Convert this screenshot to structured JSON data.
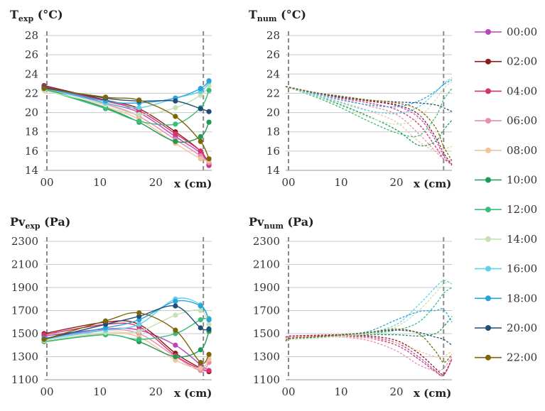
{
  "colors": [
    "#bb44bb",
    "#8b1a1a",
    "#d6336c",
    "#e98cb2",
    "#f0c39a",
    "#1f9a55",
    "#3bbd7a",
    "#c5e0b4",
    "#5fd0e8",
    "#2aa3dc",
    "#1f4e79",
    "#7d6608"
  ],
  "legend": [
    "00:00",
    "02:00",
    "04:00",
    "06:00",
    "08:00",
    "10:00",
    "12:00",
    "14:00",
    "16:00",
    "18:00",
    "20:00",
    "22:00"
  ],
  "chart_data": [
    {
      "id": "t-exp",
      "type": "line",
      "title": "T",
      "title_sub": "exp",
      "title_unit": " (°C)",
      "xlabel": "x (cm)",
      "xlim": [
        0,
        30
      ],
      "ylim": [
        14,
        28
      ],
      "yticks": [
        "14",
        "16",
        "18",
        "20",
        "22",
        "24",
        "26",
        "28"
      ],
      "xticks": [
        {
          "v": 0,
          "label": "00"
        },
        {
          "v": 10,
          "label": "10"
        },
        {
          "v": 20,
          "label": "20"
        }
      ],
      "boundaries": [
        0,
        28.5
      ],
      "x": [
        0,
        11,
        17,
        23.5,
        28,
        29.5
      ],
      "series": [
        {
          "name": "00:00",
          "values": [
            22.7,
            21.0,
            20.0,
            17.5,
            15.8,
            14.5
          ]
        },
        {
          "name": "02:00",
          "values": [
            22.8,
            21.3,
            20.4,
            18.0,
            16.0,
            14.6
          ]
        },
        {
          "name": "04:00",
          "values": [
            22.7,
            21.2,
            20.2,
            17.8,
            16.0,
            14.6
          ]
        },
        {
          "name": "06:00",
          "values": [
            22.6,
            20.9,
            19.6,
            17.2,
            15.5,
            14.8
          ]
        },
        {
          "name": "08:00",
          "values": [
            22.4,
            20.6,
            19.3,
            16.8,
            15.2,
            15.0
          ]
        },
        {
          "name": "10:00",
          "values": [
            22.5,
            20.5,
            19.0,
            17.0,
            17.5,
            19.0
          ]
        },
        {
          "name": "12:00",
          "values": [
            22.4,
            20.4,
            19.1,
            18.8,
            20.5,
            22.3
          ]
        },
        {
          "name": "14:00",
          "values": [
            22.3,
            20.8,
            19.8,
            20.5,
            21.8,
            22.8
          ]
        },
        {
          "name": "16:00",
          "values": [
            22.5,
            21.0,
            20.5,
            21.5,
            22.2,
            23.2
          ]
        },
        {
          "name": "18:00",
          "values": [
            22.6,
            21.2,
            21.0,
            21.5,
            22.5,
            23.3
          ]
        },
        {
          "name": "20:00",
          "values": [
            22.6,
            21.5,
            21.2,
            21.2,
            20.4,
            20.1
          ]
        },
        {
          "name": "22:00",
          "values": [
            22.5,
            21.6,
            21.3,
            19.6,
            17.0,
            15.2
          ]
        }
      ]
    },
    {
      "id": "t-num",
      "type": "line",
      "title": "T",
      "title_sub": "num",
      "title_unit": " (°C)",
      "xlabel": "x (cm)",
      "xlim": [
        0,
        30
      ],
      "ylim": [
        14,
        28
      ],
      "yticks": [
        "14",
        "16",
        "18",
        "20",
        "22",
        "24",
        "26",
        "28"
      ],
      "xticks": [
        {
          "v": 0,
          "label": "00"
        },
        {
          "v": 10,
          "label": "10"
        },
        {
          "v": 20,
          "label": "20"
        }
      ],
      "boundaries": [
        0,
        28.5
      ],
      "x": [
        0,
        5,
        10,
        15,
        20,
        24,
        27,
        28.5,
        30
      ],
      "series": [
        {
          "name": "00:00",
          "values": [
            22.7,
            22.1,
            21.6,
            21.2,
            20.7,
            19.5,
            17.2,
            15.5,
            14.5
          ]
        },
        {
          "name": "02:00",
          "values": [
            22.7,
            22.1,
            21.6,
            21.2,
            20.8,
            19.8,
            17.5,
            15.8,
            14.6
          ]
        },
        {
          "name": "04:00",
          "values": [
            22.7,
            22.1,
            21.5,
            21.0,
            20.3,
            18.8,
            16.5,
            15.2,
            14.8
          ]
        },
        {
          "name": "06:00",
          "values": [
            22.7,
            22.0,
            21.4,
            20.7,
            19.8,
            17.8,
            16.0,
            15.2,
            15.0
          ]
        },
        {
          "name": "08:00",
          "values": [
            22.7,
            21.9,
            21.1,
            20.2,
            19.0,
            17.0,
            16.0,
            16.2,
            16.5
          ]
        },
        {
          "name": "10:00",
          "values": [
            22.7,
            21.8,
            20.8,
            19.6,
            18.2,
            16.6,
            17.0,
            18.2,
            19.2
          ]
        },
        {
          "name": "12:00",
          "values": [
            22.7,
            21.7,
            20.5,
            19.1,
            17.9,
            17.6,
            19.5,
            21.3,
            22.5
          ]
        },
        {
          "name": "14:00",
          "values": [
            22.7,
            21.8,
            20.7,
            19.5,
            18.8,
            19.5,
            21.3,
            22.5,
            23.2
          ]
        },
        {
          "name": "16:00",
          "values": [
            22.7,
            21.9,
            21.0,
            20.2,
            19.9,
            20.6,
            22.1,
            23.0,
            23.6
          ]
        },
        {
          "name": "18:00",
          "values": [
            22.7,
            22.0,
            21.3,
            20.8,
            20.6,
            21.2,
            22.2,
            22.9,
            23.4
          ]
        },
        {
          "name": "20:00",
          "values": [
            22.7,
            22.1,
            21.6,
            21.3,
            21.1,
            21.0,
            20.8,
            20.5,
            20.1
          ]
        },
        {
          "name": "22:00",
          "values": [
            22.7,
            22.1,
            21.7,
            21.3,
            21.0,
            20.3,
            18.5,
            16.5,
            15.0
          ]
        }
      ]
    },
    {
      "id": "pv-exp",
      "type": "line",
      "title": "Pv",
      "title_sub": "exp",
      "title_unit": " (Pa)",
      "xlabel": "x (cm)",
      "xlim": [
        0,
        30
      ],
      "ylim": [
        1100,
        2300
      ],
      "yticks": [
        "1100",
        "1300",
        "1500",
        "1700",
        "1900",
        "2100",
        "2300"
      ],
      "xticks": [
        {
          "v": 0,
          "label": "00"
        },
        {
          "v": 10,
          "label": "10"
        },
        {
          "v": 20,
          "label": "20"
        }
      ],
      "boundaries": [
        0,
        28.5
      ],
      "x": [
        0,
        11,
        17,
        23.5,
        28,
        29.5
      ],
      "series": [
        {
          "name": "00:00",
          "values": [
            1480,
            1540,
            1530,
            1400,
            1230,
            1180
          ]
        },
        {
          "name": "02:00",
          "values": [
            1500,
            1600,
            1580,
            1330,
            1200,
            1170
          ]
        },
        {
          "name": "04:00",
          "values": [
            1490,
            1580,
            1560,
            1310,
            1190,
            1180
          ]
        },
        {
          "name": "06:00",
          "values": [
            1460,
            1530,
            1500,
            1300,
            1180,
            1250
          ]
        },
        {
          "name": "08:00",
          "values": [
            1440,
            1500,
            1470,
            1270,
            1200,
            1280
          ]
        },
        {
          "name": "10:00",
          "values": [
            1430,
            1490,
            1430,
            1300,
            1360,
            1520
          ]
        },
        {
          "name": "12:00",
          "values": [
            1430,
            1490,
            1450,
            1500,
            1620,
            1630
          ]
        },
        {
          "name": "14:00",
          "values": [
            1440,
            1510,
            1520,
            1660,
            1700,
            1580
          ]
        },
        {
          "name": "16:00",
          "values": [
            1450,
            1530,
            1580,
            1800,
            1750,
            1620
          ]
        },
        {
          "name": "18:00",
          "values": [
            1460,
            1550,
            1620,
            1780,
            1740,
            1620
          ]
        },
        {
          "name": "20:00",
          "values": [
            1450,
            1580,
            1650,
            1740,
            1550,
            1540
          ]
        },
        {
          "name": "22:00",
          "values": [
            1450,
            1610,
            1680,
            1530,
            1250,
            1320
          ]
        }
      ]
    },
    {
      "id": "pv-num",
      "type": "line",
      "title": "Pv",
      "title_sub": "num",
      "title_unit": " (Pa)",
      "xlabel": "x (cm)",
      "xlim": [
        0,
        30
      ],
      "ylim": [
        1100,
        2300
      ],
      "yticks": [
        "1100",
        "1300",
        "1500",
        "1700",
        "1900",
        "2100",
        "2300"
      ],
      "xticks": [
        {
          "v": 0,
          "label": "00"
        },
        {
          "v": 10,
          "label": "10"
        },
        {
          "v": 20,
          "label": "20"
        }
      ],
      "boundaries": [
        0,
        28.5
      ],
      "x": [
        0,
        1,
        5,
        10,
        15,
        20,
        24,
        27,
        28.5,
        30
      ],
      "series": [
        {
          "name": "00:00",
          "values": [
            1470,
            1480,
            1480,
            1485,
            1470,
            1420,
            1300,
            1180,
            1140,
            1280
          ]
        },
        {
          "name": "02:00",
          "values": [
            1470,
            1480,
            1485,
            1490,
            1480,
            1440,
            1330,
            1200,
            1150,
            1280
          ]
        },
        {
          "name": "04:00",
          "values": [
            1470,
            1480,
            1480,
            1480,
            1460,
            1400,
            1280,
            1170,
            1140,
            1280
          ]
        },
        {
          "name": "06:00",
          "values": [
            1460,
            1470,
            1475,
            1470,
            1440,
            1350,
            1230,
            1180,
            1200,
            1300
          ]
        },
        {
          "name": "08:00",
          "values": [
            1450,
            1460,
            1470,
            1470,
            1460,
            1420,
            1350,
            1300,
            1300,
            1350
          ]
        },
        {
          "name": "10:00",
          "values": [
            1430,
            1450,
            1460,
            1480,
            1490,
            1490,
            1480,
            1500,
            1560,
            1650
          ]
        },
        {
          "name": "12:00",
          "values": [
            1430,
            1450,
            1460,
            1480,
            1500,
            1530,
            1600,
            1750,
            1850,
            1900
          ]
        },
        {
          "name": "14:00",
          "values": [
            1430,
            1450,
            1460,
            1480,
            1500,
            1560,
            1700,
            1850,
            1930,
            1950
          ]
        },
        {
          "name": "16:00",
          "values": [
            1440,
            1460,
            1470,
            1490,
            1510,
            1580,
            1750,
            1900,
            1960,
            1930
          ]
        },
        {
          "name": "18:00",
          "values": [
            1440,
            1460,
            1470,
            1490,
            1520,
            1620,
            1690,
            1700,
            1710,
            1600
          ]
        },
        {
          "name": "20:00",
          "values": [
            1440,
            1460,
            1470,
            1490,
            1510,
            1530,
            1510,
            1470,
            1450,
            1400
          ]
        },
        {
          "name": "22:00",
          "values": [
            1440,
            1460,
            1470,
            1490,
            1510,
            1540,
            1500,
            1350,
            1250,
            1320
          ]
        }
      ]
    }
  ]
}
